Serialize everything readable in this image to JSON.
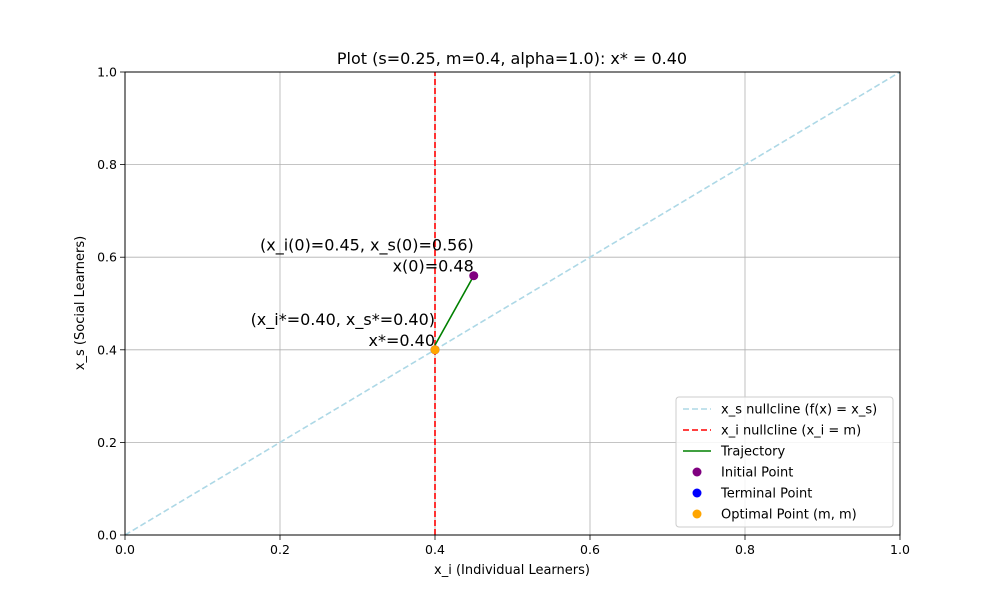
{
  "chart_data": {
    "type": "line",
    "title": "Plot (s=0.25, m=0.4, alpha=1.0): x* = 0.40",
    "xlabel": "x_i (Individual Learners)",
    "ylabel": "x_s (Social Learners)",
    "xlim": [
      0.0,
      1.0
    ],
    "ylim": [
      0.0,
      1.0
    ],
    "xticks": [
      "0.0",
      "0.2",
      "0.4",
      "0.6",
      "0.8",
      "1.0"
    ],
    "yticks": [
      "0.0",
      "0.2",
      "0.4",
      "0.6",
      "0.8",
      "1.0"
    ],
    "xtick_values": [
      0.0,
      0.2,
      0.4,
      0.6,
      0.8,
      1.0
    ],
    "ytick_values": [
      0.0,
      0.2,
      0.4,
      0.6,
      0.8,
      1.0
    ],
    "grid": true,
    "legend_position": "lower-right",
    "series": [
      {
        "name": "x_s nullcline (f(x) = x_s)",
        "kind": "line",
        "style": "dashed",
        "color": "#add8e6",
        "x": [
          0.0,
          1.0
        ],
        "y": [
          0.0,
          1.0
        ]
      },
      {
        "name": "x_i nullcline (x_i = m)",
        "kind": "line",
        "style": "dashed",
        "color": "#ff0000",
        "x": [
          0.4,
          0.4
        ],
        "y": [
          0.0,
          1.0
        ]
      },
      {
        "name": "Trajectory",
        "kind": "line",
        "style": "solid",
        "color": "#008000",
        "x": [
          0.45,
          0.4
        ],
        "y": [
          0.56,
          0.41
        ]
      },
      {
        "name": "Initial Point",
        "kind": "point",
        "color": "#800080",
        "x": [
          0.45
        ],
        "y": [
          0.56
        ]
      },
      {
        "name": "Terminal Point",
        "kind": "point",
        "color": "#0000ff",
        "x": [
          0.4
        ],
        "y": [
          0.4
        ]
      },
      {
        "name": "Optimal Point (m, m)",
        "kind": "point",
        "color": "#ffa500",
        "x": [
          0.4
        ],
        "y": [
          0.4
        ]
      }
    ],
    "annotations": [
      {
        "x": 0.45,
        "y": 0.56,
        "lines": [
          "(x_i(0)=0.45, x_s(0)=0.56)",
          "x(0)=0.48"
        ]
      },
      {
        "x": 0.4,
        "y": 0.4,
        "lines": [
          "(x_i*=0.40, x_s*=0.40)",
          "x*=0.40"
        ]
      }
    ]
  }
}
